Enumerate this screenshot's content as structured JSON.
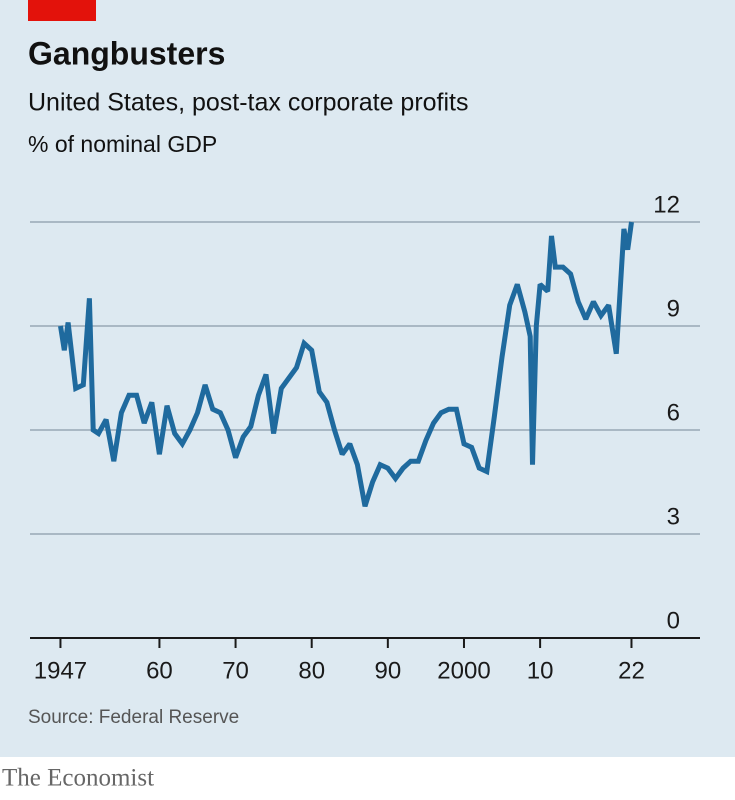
{
  "chart_data": {
    "type": "line",
    "title": "Gangbusters",
    "subtitle": "United States, post-tax corporate profits",
    "y_label": "% of nominal GDP",
    "source": "Source: Federal Reserve",
    "brand": "The Economist",
    "color": "#1f6a9e",
    "grid": true,
    "xlim": [
      1943,
      2031
    ],
    "ylim": [
      0,
      12
    ],
    "yticks": [
      0,
      3,
      6,
      9,
      12
    ],
    "xticks": [
      {
        "value": 1947,
        "label": "1947"
      },
      {
        "value": 1960,
        "label": "60"
      },
      {
        "value": 1970,
        "label": "70"
      },
      {
        "value": 1980,
        "label": "80"
      },
      {
        "value": 1990,
        "label": "90"
      },
      2000,
      {
        "value": 2010,
        "label": "10"
      },
      {
        "value": 2022,
        "label": "22"
      }
    ],
    "x": [
      1947,
      1947.5,
      1948,
      1949,
      1950,
      1950.8,
      1951.3,
      1952,
      1953,
      1954,
      1955,
      1956,
      1957,
      1958,
      1959,
      1960,
      1961,
      1962,
      1963,
      1964,
      1965,
      1966,
      1967,
      1968,
      1969,
      1970,
      1971,
      1972,
      1973,
      1974,
      1975,
      1976,
      1977,
      1978,
      1979,
      1980,
      1981,
      1982,
      1983,
      1984,
      1985,
      1986,
      1987,
      1988,
      1989,
      1990,
      1991,
      1992,
      1993,
      1994,
      1995,
      1996,
      1997,
      1998,
      1999,
      2000,
      2001,
      2002,
      2003,
      2004,
      2005,
      2006,
      2007,
      2008,
      2008.7,
      2009,
      2009.5,
      2010,
      2011,
      2011.5,
      2012,
      2013,
      2014,
      2015,
      2016,
      2017,
      2018,
      2019,
      2020,
      2020.5,
      2021,
      2021.5,
      2022
    ],
    "values": [
      9.0,
      8.3,
      9.1,
      7.2,
      7.3,
      9.8,
      6.0,
      5.9,
      6.3,
      5.1,
      6.5,
      7.0,
      7.0,
      6.2,
      6.8,
      5.3,
      6.7,
      5.9,
      5.6,
      6.0,
      6.5,
      7.3,
      6.6,
      6.5,
      6.0,
      5.2,
      5.8,
      6.1,
      7.0,
      7.6,
      5.9,
      7.2,
      7.5,
      7.8,
      8.5,
      8.3,
      7.1,
      6.8,
      6.0,
      5.3,
      5.6,
      5.0,
      3.8,
      4.5,
      5.0,
      4.9,
      4.6,
      4.9,
      5.1,
      5.1,
      5.7,
      6.2,
      6.5,
      6.6,
      6.6,
      5.6,
      5.5,
      4.9,
      4.8,
      6.4,
      8.1,
      9.6,
      10.2,
      9.4,
      8.7,
      5.0,
      9.0,
      10.2,
      10.0,
      11.6,
      10.7,
      10.7,
      10.5,
      9.7,
      9.2,
      9.7,
      9.3,
      9.6,
      8.2,
      10.0,
      11.8,
      11.2,
      12.0
    ]
  }
}
